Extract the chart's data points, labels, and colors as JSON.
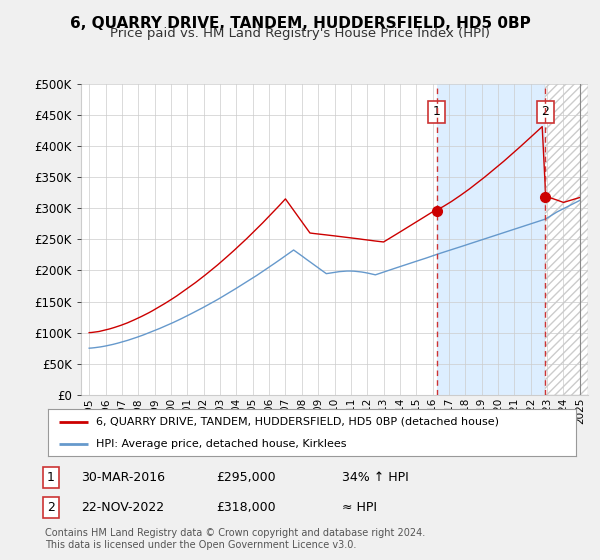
{
  "title": "6, QUARRY DRIVE, TANDEM, HUDDERSFIELD, HD5 0BP",
  "subtitle": "Price paid vs. HM Land Registry's House Price Index (HPI)",
  "title_fontsize": 11,
  "subtitle_fontsize": 9.5,
  "ytick_values": [
    0,
    50000,
    100000,
    150000,
    200000,
    250000,
    300000,
    350000,
    400000,
    450000,
    500000
  ],
  "ylim": [
    0,
    500000
  ],
  "x_start_year": 1995,
  "x_end_year": 2025,
  "xtick_years": [
    1995,
    1996,
    1997,
    1998,
    1999,
    2000,
    2001,
    2002,
    2003,
    2004,
    2005,
    2006,
    2007,
    2008,
    2009,
    2010,
    2011,
    2012,
    2013,
    2014,
    2015,
    2016,
    2017,
    2018,
    2019,
    2020,
    2021,
    2022,
    2023,
    2024,
    2025
  ],
  "marker1_year": 2016.25,
  "marker1_value": 295000,
  "marker1_label": "1",
  "marker1_date": "30-MAR-2016",
  "marker1_price": "£295,000",
  "marker1_pct": "34% ↑ HPI",
  "marker2_year": 2022.9,
  "marker2_value": 318000,
  "marker2_label": "2",
  "marker2_date": "22-NOV-2022",
  "marker2_price": "£318,000",
  "marker2_pct": "≈ HPI",
  "vline1_year": 2016.25,
  "vline2_year": 2022.9,
  "red_color": "#cc0000",
  "blue_color": "#6699cc",
  "vline_color": "#cc3333",
  "fill_color": "#ddeeff",
  "hatch_color": "#cccccc",
  "background_color": "#f0f0f0",
  "plot_bg_color": "#ffffff",
  "grid_color": "#cccccc",
  "legend_label_red": "6, QUARRY DRIVE, TANDEM, HUDDERSFIELD, HD5 0BP (detached house)",
  "legend_label_blue": "HPI: Average price, detached house, Kirklees",
  "footer1": "Contains HM Land Registry data © Crown copyright and database right 2024.",
  "footer2": "This data is licensed under the Open Government Licence v3.0."
}
